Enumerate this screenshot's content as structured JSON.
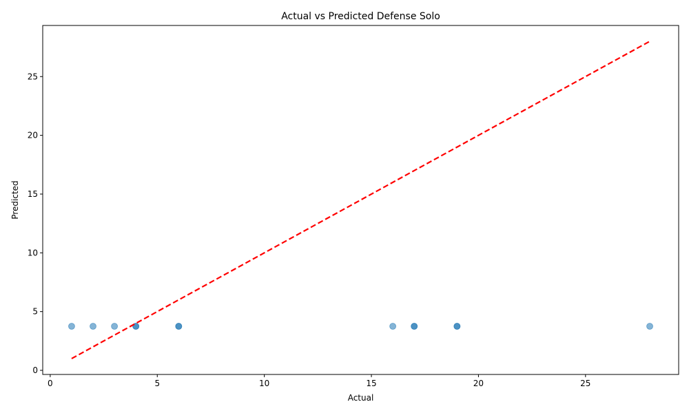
{
  "chart_data": {
    "type": "scatter",
    "title": "Actual vs Predicted Defense Solo",
    "xlabel": "Actual",
    "ylabel": "Predicted",
    "xlim": [
      -0.35,
      29.35
    ],
    "ylim": [
      -0.35,
      29.35
    ],
    "xticks": [
      0,
      5,
      10,
      15,
      20,
      25
    ],
    "yticks": [
      0,
      5,
      10,
      15,
      20,
      25
    ],
    "grid": false,
    "points": [
      {
        "x": 1,
        "y": 3.75
      },
      {
        "x": 2,
        "y": 3.75
      },
      {
        "x": 3,
        "y": 3.75
      },
      {
        "x": 4,
        "y": 3.75
      },
      {
        "x": 4,
        "y": 3.75
      },
      {
        "x": 6,
        "y": 3.75
      },
      {
        "x": 6,
        "y": 3.75
      },
      {
        "x": 16,
        "y": 3.75
      },
      {
        "x": 17,
        "y": 3.75
      },
      {
        "x": 17,
        "y": 3.75
      },
      {
        "x": 19,
        "y": 3.75
      },
      {
        "x": 19,
        "y": 3.75
      },
      {
        "x": 28,
        "y": 3.75
      }
    ],
    "reference_line": {
      "x": [
        1,
        28
      ],
      "y": [
        1,
        28
      ],
      "style": "dashed"
    },
    "colors": {
      "points": "#1f77b4",
      "reference_line": "#ff0000"
    }
  }
}
